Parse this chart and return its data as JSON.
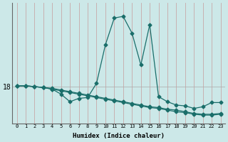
{
  "xlabel": "Humidex (Indice chaleur)",
  "bg_color": "#cce8e8",
  "line_color": "#1a6e6a",
  "grid_v_color": "#c8a8a8",
  "grid_h_color": "#aaaaaa",
  "ytick_label": "18",
  "ytick_value": 18.0,
  "x_values": [
    0,
    1,
    2,
    3,
    4,
    5,
    6,
    7,
    8,
    9,
    10,
    11,
    12,
    13,
    14,
    15,
    16,
    17,
    18,
    19,
    20,
    21,
    22,
    23
  ],
  "line1": [
    18.05,
    18.05,
    18.0,
    17.95,
    17.85,
    17.55,
    17.1,
    17.3,
    17.35,
    18.2,
    20.5,
    22.1,
    22.2,
    21.2,
    19.3,
    21.7,
    17.4,
    17.1,
    16.9,
    16.85,
    16.7,
    16.8,
    17.05,
    17.05
  ],
  "line2": [
    18.05,
    18.05,
    18.0,
    17.95,
    17.85,
    17.75,
    17.65,
    17.55,
    17.45,
    17.35,
    17.25,
    17.15,
    17.05,
    16.95,
    16.85,
    16.75,
    16.7,
    16.6,
    16.5,
    16.45,
    16.35,
    16.3,
    16.3,
    16.35
  ],
  "line3": [
    18.05,
    18.05,
    18.0,
    17.95,
    17.9,
    17.8,
    17.7,
    17.6,
    17.5,
    17.4,
    17.3,
    17.2,
    17.1,
    17.0,
    16.9,
    16.8,
    16.75,
    16.65,
    16.6,
    16.5,
    16.4,
    16.35,
    16.35,
    16.4
  ],
  "xlim": [
    -0.5,
    23.5
  ],
  "ylim": [
    15.8,
    23.0
  ],
  "xtick_values": [
    0,
    1,
    2,
    3,
    4,
    5,
    6,
    7,
    8,
    9,
    10,
    11,
    12,
    13,
    14,
    15,
    16,
    17,
    18,
    19,
    20,
    21,
    22,
    23
  ],
  "ytick_values": [
    18.0
  ],
  "markersize": 2.5
}
